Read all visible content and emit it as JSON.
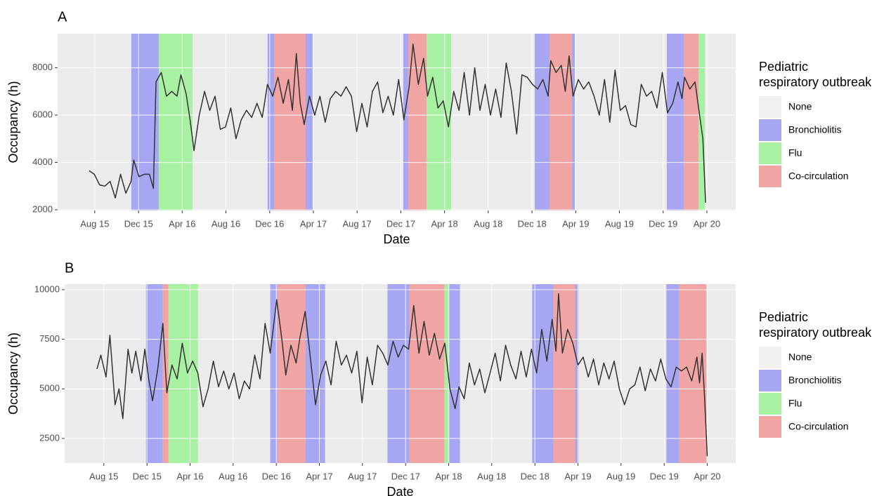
{
  "chart_data": [
    {
      "type": "line",
      "label": "A",
      "xlabel": "Date",
      "ylabel": "Occupancy (h)",
      "color": "#333333",
      "grid": true,
      "xlim": [
        2015.3,
        2020.47
      ],
      "ylim": [
        1970,
        9440
      ],
      "xticks": [
        {
          "value": 2015.583,
          "label": "Aug 15"
        },
        {
          "value": 2015.917,
          "label": "Dec 15"
        },
        {
          "value": 2016.25,
          "label": "Apr 16"
        },
        {
          "value": 2016.583,
          "label": "Aug 16"
        },
        {
          "value": 2016.917,
          "label": "Dec 16"
        },
        {
          "value": 2017.25,
          "label": "Apr 17"
        },
        {
          "value": 2017.583,
          "label": "Aug 17"
        },
        {
          "value": 2017.917,
          "label": "Dec 17"
        },
        {
          "value": 2018.25,
          "label": "Apr 18"
        },
        {
          "value": 2018.583,
          "label": "Aug 18"
        },
        {
          "value": 2018.917,
          "label": "Dec 18"
        },
        {
          "value": 2019.25,
          "label": "Apr 19"
        },
        {
          "value": 2019.583,
          "label": "Aug 19"
        },
        {
          "value": 2019.917,
          "label": "Dec 19"
        },
        {
          "value": 2020.25,
          "label": "Apr 20"
        }
      ],
      "yticks": [
        2000,
        4000,
        6000,
        8000
      ],
      "legend": {
        "title": [
          "Pediatric",
          "respiratory outbreak"
        ],
        "entries": [
          {
            "name": "None",
            "color": "#f0f0f0"
          },
          {
            "name": "Bronchiolitis",
            "color": "#a6a6f2",
            "periods": [
              [
                2015.862,
                2016.071
              ],
              [
                2016.901,
                2016.95
              ],
              [
                2017.191,
                2017.244
              ],
              [
                2017.936,
                2017.973
              ],
              [
                2018.938,
                2019.05
              ],
              [
                2019.222,
                2019.243
              ],
              [
                2019.945,
                2020.074
              ]
            ]
          },
          {
            "name": "Flu",
            "color": "#a8f0a2",
            "periods": [
              [
                2016.071,
                2016.328
              ],
              [
                2018.113,
                2018.3
              ],
              [
                2020.186,
                2020.234
              ]
            ]
          },
          {
            "name": "Co-circulation",
            "color": "#f0a4a4",
            "periods": [
              [
                2016.95,
                2017.191
              ],
              [
                2017.973,
                2018.113
              ],
              [
                2019.05,
                2019.222
              ],
              [
                2020.074,
                2020.186
              ]
            ]
          }
        ]
      },
      "x": [
        2015.54,
        2015.58,
        2015.62,
        2015.66,
        2015.7,
        2015.74,
        2015.78,
        2015.82,
        2015.86,
        2015.88,
        2015.92,
        2015.96,
        2016.0,
        2016.03,
        2016.05,
        2016.09,
        2016.13,
        2016.17,
        2016.21,
        2016.24,
        2016.28,
        2016.31,
        2016.34,
        2016.38,
        2016.42,
        2016.46,
        2016.5,
        2016.54,
        2016.58,
        2016.62,
        2016.66,
        2016.7,
        2016.74,
        2016.78,
        2016.82,
        2016.86,
        2016.9,
        2016.94,
        2016.98,
        2017.02,
        2017.06,
        2017.09,
        2017.12,
        2017.15,
        2017.18,
        2017.22,
        2017.26,
        2017.3,
        2017.34,
        2017.38,
        2017.42,
        2017.46,
        2017.5,
        2017.54,
        2017.58,
        2017.62,
        2017.66,
        2017.7,
        2017.74,
        2017.78,
        2017.82,
        2017.86,
        2017.9,
        2017.94,
        2017.98,
        2018.01,
        2018.05,
        2018.09,
        2018.12,
        2018.16,
        2018.2,
        2018.24,
        2018.28,
        2018.32,
        2018.36,
        2018.4,
        2018.44,
        2018.48,
        2018.52,
        2018.56,
        2018.6,
        2018.64,
        2018.68,
        2018.72,
        2018.76,
        2018.8,
        2018.84,
        2018.88,
        2018.92,
        2018.96,
        2019.0,
        2019.04,
        2019.06,
        2019.1,
        2019.14,
        2019.17,
        2019.2,
        2019.23,
        2019.27,
        2019.31,
        2019.35,
        2019.39,
        2019.43,
        2019.47,
        2019.51,
        2019.55,
        2019.59,
        2019.63,
        2019.67,
        2019.71,
        2019.75,
        2019.79,
        2019.83,
        2019.87,
        2019.91,
        2019.95,
        2019.99,
        2020.03,
        2020.06,
        2020.08,
        2020.12,
        2020.16,
        2020.19,
        2020.22,
        2020.24
      ],
      "values": [
        3650,
        3500,
        3050,
        3000,
        3200,
        2500,
        3500,
        2700,
        3200,
        4100,
        3400,
        3500,
        3500,
        2900,
        7400,
        7800,
        6800,
        7000,
        6800,
        7700,
        6900,
        5800,
        4500,
        6000,
        7000,
        6200,
        6800,
        5400,
        5500,
        6300,
        5000,
        5800,
        6200,
        5900,
        6500,
        5900,
        7300,
        6800,
        7600,
        6500,
        7500,
        6200,
        8600,
        6500,
        5600,
        6800,
        6000,
        6800,
        5700,
        6700,
        7000,
        6800,
        7200,
        6800,
        5300,
        6500,
        5500,
        7000,
        7400,
        6100,
        6800,
        6000,
        7500,
        5800,
        7200,
        9000,
        7300,
        8400,
        6800,
        7600,
        6300,
        6600,
        5500,
        7000,
        6200,
        7800,
        6000,
        8000,
        6200,
        7300,
        6000,
        7100,
        5900,
        8200,
        7000,
        5200,
        7700,
        7600,
        7300,
        7100,
        7500,
        6800,
        8300,
        7800,
        8100,
        7000,
        8500,
        6800,
        7500,
        7100,
        7400,
        6800,
        6000,
        7500,
        5700,
        7900,
        6200,
        6400,
        5600,
        5500,
        7300,
        6800,
        7000,
        6300,
        7800,
        6100,
        6500,
        7400,
        6700,
        7600,
        7100,
        7400,
        6200,
        5000,
        2300
      ]
    },
    {
      "type": "line",
      "label": "B",
      "xlabel": "Date",
      "ylabel": "Occupancy (h)",
      "color": "#333333",
      "grid": true,
      "xlim": [
        2015.28,
        2020.47
      ],
      "ylim": [
        1260,
        10280
      ],
      "xticks": [
        {
          "value": 2015.583,
          "label": "Aug 15"
        },
        {
          "value": 2015.917,
          "label": "Dec 15"
        },
        {
          "value": 2016.25,
          "label": "Apr 16"
        },
        {
          "value": 2016.583,
          "label": "Aug 16"
        },
        {
          "value": 2016.917,
          "label": "Dec 16"
        },
        {
          "value": 2017.25,
          "label": "Apr 17"
        },
        {
          "value": 2017.583,
          "label": "Aug 17"
        },
        {
          "value": 2017.917,
          "label": "Dec 17"
        },
        {
          "value": 2018.25,
          "label": "Apr 18"
        },
        {
          "value": 2018.583,
          "label": "Aug 18"
        },
        {
          "value": 2018.917,
          "label": "Dec 18"
        },
        {
          "value": 2019.25,
          "label": "Apr 19"
        },
        {
          "value": 2019.583,
          "label": "Aug 19"
        },
        {
          "value": 2019.917,
          "label": "Dec 19"
        },
        {
          "value": 2020.25,
          "label": "Apr 20"
        }
      ],
      "yticks": [
        2500,
        5000,
        7500,
        10000
      ],
      "legend": {
        "title": [
          "Pediatric",
          "respiratory outbreak"
        ],
        "entries": [
          {
            "name": "None",
            "color": "#f0f0f0"
          },
          {
            "name": "Bronchiolitis",
            "color": "#a6a6f2",
            "periods": [
              [
                2015.909,
                2016.039
              ],
              [
                2016.87,
                2016.925
              ],
              [
                2017.142,
                2017.294
              ],
              [
                2017.777,
                2017.946
              ],
              [
                2018.255,
                2018.337
              ],
              [
                2018.896,
                2019.06
              ],
              [
                2019.228,
                2019.255
              ],
              [
                2019.934,
                2020.032
              ]
            ]
          },
          {
            "name": "Flu",
            "color": "#a8f0a2",
            "periods": [
              [
                2016.083,
                2016.311
              ],
              [
                2018.217,
                2018.255
              ]
            ]
          },
          {
            "name": "Co-circulation",
            "color": "#f0a4a4",
            "periods": [
              [
                2016.039,
                2016.083
              ],
              [
                2016.925,
                2017.142
              ],
              [
                2017.946,
                2018.217
              ],
              [
                2019.06,
                2019.228
              ],
              [
                2020.032,
                2020.244
              ]
            ]
          }
        ]
      },
      "x": [
        2015.53,
        2015.56,
        2015.6,
        2015.63,
        2015.67,
        2015.7,
        2015.73,
        2015.77,
        2015.8,
        2015.83,
        2015.87,
        2015.9,
        2015.93,
        2015.96,
        2016.0,
        2016.04,
        2016.07,
        2016.11,
        2016.15,
        2016.19,
        2016.23,
        2016.27,
        2016.31,
        2016.35,
        2016.39,
        2016.43,
        2016.47,
        2016.51,
        2016.55,
        2016.59,
        2016.63,
        2016.67,
        2016.71,
        2016.75,
        2016.79,
        2016.83,
        2016.87,
        2016.92,
        2016.96,
        2016.99,
        2017.03,
        2017.07,
        2017.1,
        2017.14,
        2017.18,
        2017.22,
        2017.26,
        2017.3,
        2017.34,
        2017.38,
        2017.42,
        2017.46,
        2017.5,
        2017.54,
        2017.58,
        2017.62,
        2017.66,
        2017.7,
        2017.74,
        2017.78,
        2017.82,
        2017.86,
        2017.9,
        2017.94,
        2017.98,
        2018.02,
        2018.06,
        2018.1,
        2018.14,
        2018.18,
        2018.22,
        2018.26,
        2018.3,
        2018.33,
        2018.37,
        2018.41,
        2018.45,
        2018.49,
        2018.53,
        2018.57,
        2018.61,
        2018.65,
        2018.69,
        2018.73,
        2018.77,
        2018.81,
        2018.85,
        2018.89,
        2018.93,
        2018.97,
        2019.01,
        2019.05,
        2019.08,
        2019.1,
        2019.13,
        2019.17,
        2019.21,
        2019.25,
        2019.29,
        2019.33,
        2019.37,
        2019.41,
        2019.45,
        2019.49,
        2019.53,
        2019.57,
        2019.61,
        2019.65,
        2019.69,
        2019.73,
        2019.77,
        2019.81,
        2019.85,
        2019.89,
        2019.93,
        2019.97,
        2020.01,
        2020.05,
        2020.09,
        2020.13,
        2020.17,
        2020.19,
        2020.21,
        2020.23,
        2020.25
      ],
      "values": [
        6000,
        6700,
        5600,
        7700,
        4200,
        5000,
        3500,
        7000,
        5800,
        6900,
        5400,
        7000,
        5500,
        4400,
        6000,
        8300,
        4800,
        6200,
        5500,
        7300,
        5800,
        6400,
        5800,
        4100,
        5000,
        6400,
        5100,
        5900,
        5000,
        5800,
        4500,
        5400,
        5000,
        6700,
        5500,
        8300,
        6800,
        9500,
        7500,
        5700,
        7200,
        6300,
        7600,
        8900,
        6600,
        4200,
        5700,
        6400,
        5200,
        7400,
        6200,
        6700,
        5800,
        6900,
        4300,
        6600,
        5200,
        7200,
        6800,
        6200,
        7400,
        6600,
        7200,
        7000,
        9200,
        6800,
        8400,
        6700,
        7800,
        6500,
        7300,
        5000,
        4000,
        5100,
        4500,
        6300,
        5200,
        6000,
        4800,
        5800,
        6800,
        5400,
        7200,
        6200,
        5500,
        6900,
        5600,
        7000,
        5800,
        8000,
        6400,
        8500,
        6900,
        9800,
        6800,
        8000,
        7300,
        6200,
        6600,
        5600,
        6500,
        5200,
        6300,
        5500,
        6400,
        5000,
        4200,
        5000,
        5200,
        6100,
        4900,
        6000,
        5400,
        6500,
        5500,
        5100,
        6100,
        5900,
        6100,
        5400,
        6600,
        5300,
        6800,
        4500,
        1600
      ]
    }
  ]
}
